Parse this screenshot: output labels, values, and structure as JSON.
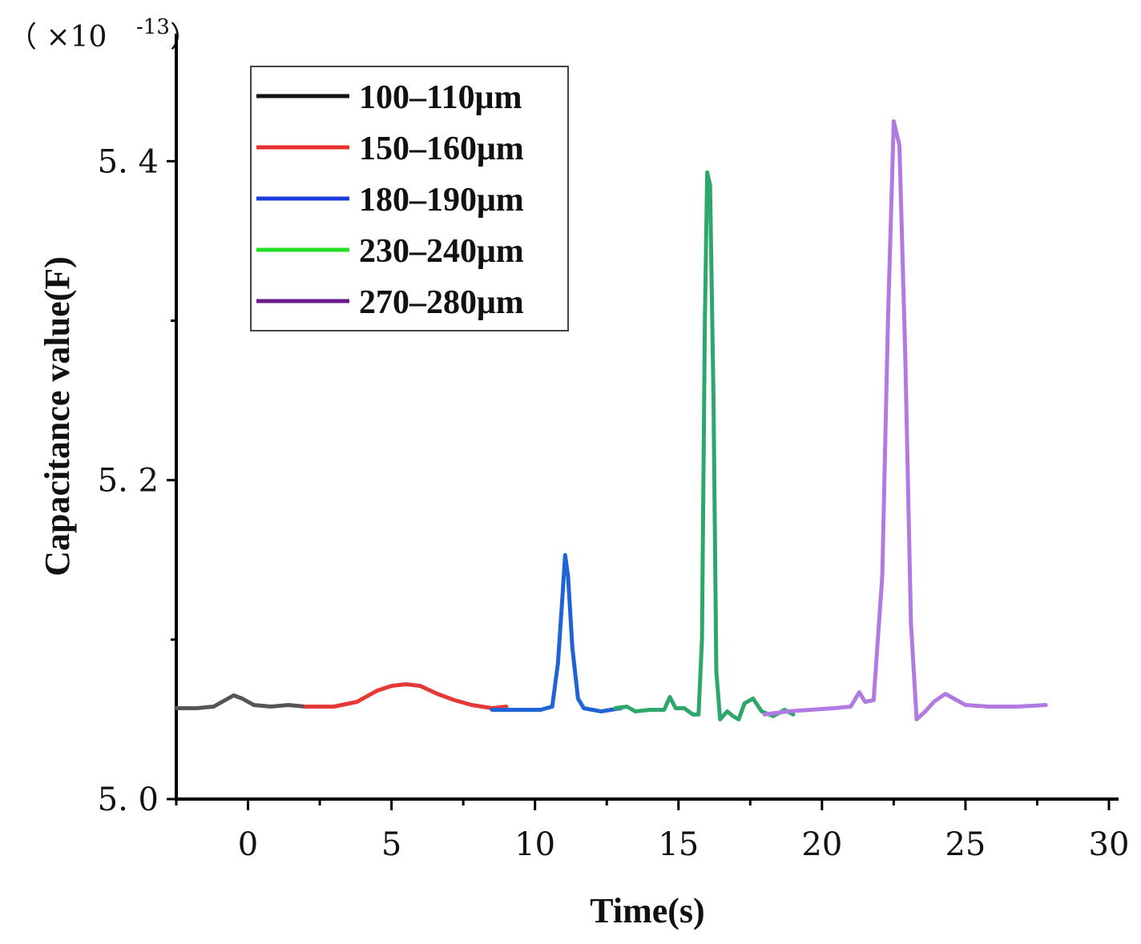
{
  "chart_data": {
    "type": "line",
    "title": "",
    "xlabel": "Time(s)",
    "ylabel": "Capacitance value(F)",
    "y_multiplier_label": "（ ×10",
    "y_multiplier_exp": "-13",
    "y_multiplier_close": "）",
    "xlim": [
      -2.5,
      30
    ],
    "ylim": [
      5.0,
      5.48
    ],
    "xticks": [
      0,
      5,
      10,
      15,
      20,
      25,
      30
    ],
    "xtick_labels": [
      "0",
      "5",
      "10",
      "15",
      "20",
      "25",
      "30"
    ],
    "yticks": [
      5.0,
      5.2,
      5.4
    ],
    "ytick_labels": [
      "5. 0",
      "5. 2",
      "5. 4"
    ],
    "legend_position": "top-left",
    "series": [
      {
        "name": "100-110μm",
        "label": "100–110μm",
        "legend_color": "#111111",
        "color": "#555555",
        "points": [
          [
            -2.5,
            5.057
          ],
          [
            -1.8,
            5.057
          ],
          [
            -1.2,
            5.058
          ],
          [
            -0.8,
            5.062
          ],
          [
            -0.5,
            5.065
          ],
          [
            -0.2,
            5.063
          ],
          [
            0.2,
            5.059
          ],
          [
            0.8,
            5.058
          ],
          [
            1.4,
            5.059
          ],
          [
            2.0,
            5.058
          ]
        ]
      },
      {
        "name": "150-160μm",
        "label": "150–160μm",
        "legend_color": "#e8302f",
        "color": "#e53935",
        "points": [
          [
            2.0,
            5.058
          ],
          [
            3.0,
            5.058
          ],
          [
            3.8,
            5.061
          ],
          [
            4.5,
            5.068
          ],
          [
            5.0,
            5.071
          ],
          [
            5.5,
            5.072
          ],
          [
            6.0,
            5.071
          ],
          [
            6.6,
            5.066
          ],
          [
            7.2,
            5.062
          ],
          [
            7.8,
            5.059
          ],
          [
            8.5,
            5.057
          ],
          [
            9.0,
            5.058
          ]
        ]
      },
      {
        "name": "180-190μm",
        "label": "180–190μm",
        "legend_color": "#1a3be0",
        "color": "#1e64d6",
        "points": [
          [
            8.5,
            5.056
          ],
          [
            9.5,
            5.056
          ],
          [
            10.2,
            5.056
          ],
          [
            10.6,
            5.058
          ],
          [
            10.8,
            5.085
          ],
          [
            10.95,
            5.125
          ],
          [
            11.05,
            5.153
          ],
          [
            11.15,
            5.14
          ],
          [
            11.3,
            5.095
          ],
          [
            11.5,
            5.063
          ],
          [
            11.7,
            5.057
          ],
          [
            12.3,
            5.055
          ],
          [
            13.0,
            5.057
          ]
        ]
      },
      {
        "name": "230-240μm",
        "label": "230–240μm",
        "legend_color": "#22dd22",
        "color": "#2ea86a",
        "points": [
          [
            12.8,
            5.057
          ],
          [
            13.2,
            5.058
          ],
          [
            13.5,
            5.055
          ],
          [
            14.0,
            5.056
          ],
          [
            14.5,
            5.056
          ],
          [
            14.7,
            5.064
          ],
          [
            14.9,
            5.057
          ],
          [
            15.2,
            5.057
          ],
          [
            15.5,
            5.053
          ],
          [
            15.7,
            5.053
          ],
          [
            15.82,
            5.1
          ],
          [
            15.92,
            5.3
          ],
          [
            16.0,
            5.393
          ],
          [
            16.1,
            5.385
          ],
          [
            16.22,
            5.25
          ],
          [
            16.32,
            5.08
          ],
          [
            16.45,
            5.05
          ],
          [
            16.7,
            5.055
          ],
          [
            16.9,
            5.052
          ],
          [
            17.1,
            5.05
          ],
          [
            17.3,
            5.06
          ],
          [
            17.6,
            5.063
          ],
          [
            17.9,
            5.055
          ],
          [
            18.3,
            5.052
          ],
          [
            18.7,
            5.056
          ],
          [
            19.0,
            5.053
          ]
        ]
      },
      {
        "name": "270-280μm",
        "label": "270–280μm",
        "legend_color": "#6a1a8a",
        "color": "#b07ae0",
        "points": [
          [
            18.0,
            5.053
          ],
          [
            18.8,
            5.055
          ],
          [
            19.6,
            5.056
          ],
          [
            20.4,
            5.057
          ],
          [
            21.0,
            5.058
          ],
          [
            21.3,
            5.067
          ],
          [
            21.5,
            5.061
          ],
          [
            21.8,
            5.062
          ],
          [
            22.1,
            5.14
          ],
          [
            22.3,
            5.3
          ],
          [
            22.5,
            5.425
          ],
          [
            22.7,
            5.41
          ],
          [
            22.9,
            5.28
          ],
          [
            23.1,
            5.11
          ],
          [
            23.3,
            5.05
          ],
          [
            23.6,
            5.055
          ],
          [
            23.9,
            5.061
          ],
          [
            24.3,
            5.066
          ],
          [
            24.6,
            5.063
          ],
          [
            25.0,
            5.059
          ],
          [
            25.8,
            5.058
          ],
          [
            26.8,
            5.058
          ],
          [
            27.8,
            5.059
          ]
        ]
      }
    ]
  }
}
